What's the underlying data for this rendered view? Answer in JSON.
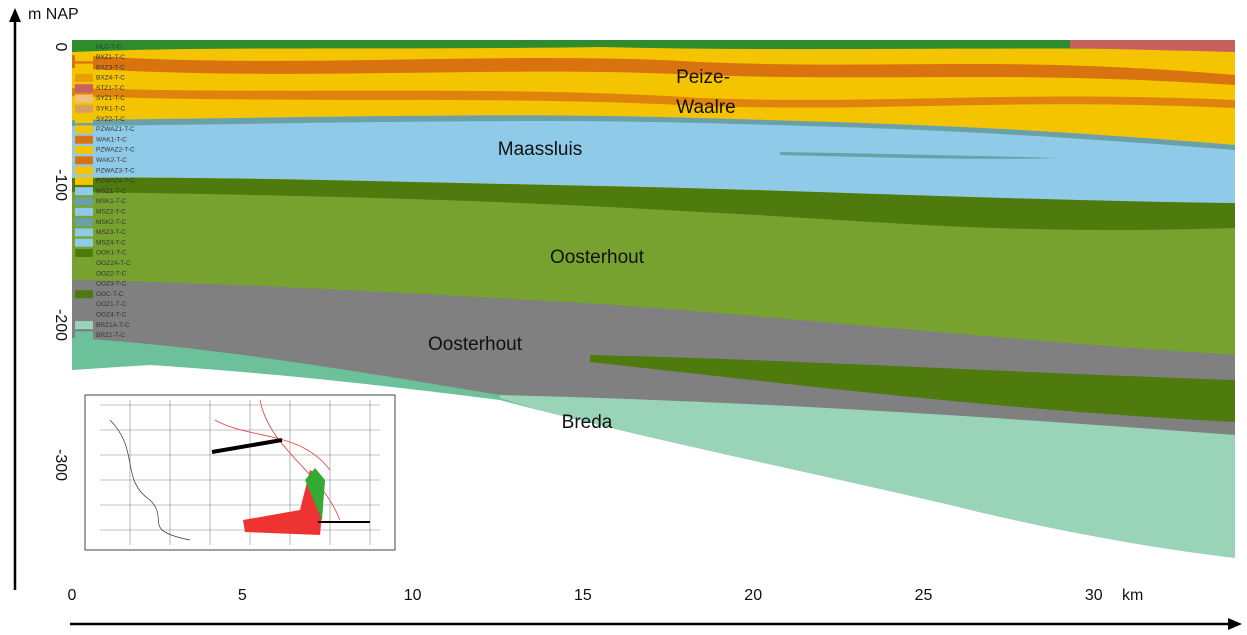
{
  "y_axis": {
    "label": "m NAP",
    "ticks": [
      "0",
      "-100",
      "-200",
      "-300"
    ]
  },
  "x_axis": {
    "unit": "km",
    "ticks": [
      "0",
      "5",
      "10",
      "15",
      "20",
      "25",
      "30"
    ]
  },
  "layers": [
    {
      "lines": [
        "Peize-",
        "Waalre"
      ]
    },
    {
      "lines": [
        "Maassluis"
      ]
    },
    {
      "lines": [
        "Oosterhout"
      ]
    },
    {
      "lines": [
        "Oosterhout"
      ]
    },
    {
      "lines": [
        "Breda"
      ]
    }
  ],
  "legend": [
    "HLC-T-C",
    "BXZ1-T-C",
    "BXZ3-T-C",
    "BXZ4-T-C",
    "STZ1-T-C",
    "SYZ1-T-C",
    "SYK1-T-C",
    "SYZ2-T-C",
    "PZWAZ1-T-C",
    "WAK1-T-C",
    "PZWAZ2-T-C",
    "WAK2-T-C",
    "PZWAZ3-T-C",
    "PZWAZ4-T-C",
    "MSZ1-T-C",
    "MSK1-T-C",
    "MSZ2-T-C",
    "MSK2-T-C",
    "MSZ3-T-C",
    "MSZ4-T-C",
    "OOK1-T-C",
    "OOZ2A-T-C",
    "OOZ2-T-C",
    "OOZ3-T-C",
    "OOC-T-C",
    "OOZ1-T-C",
    "OOZ4-T-C",
    "BRZ1A-T-C",
    "BRZ1-T-C"
  ]
}
